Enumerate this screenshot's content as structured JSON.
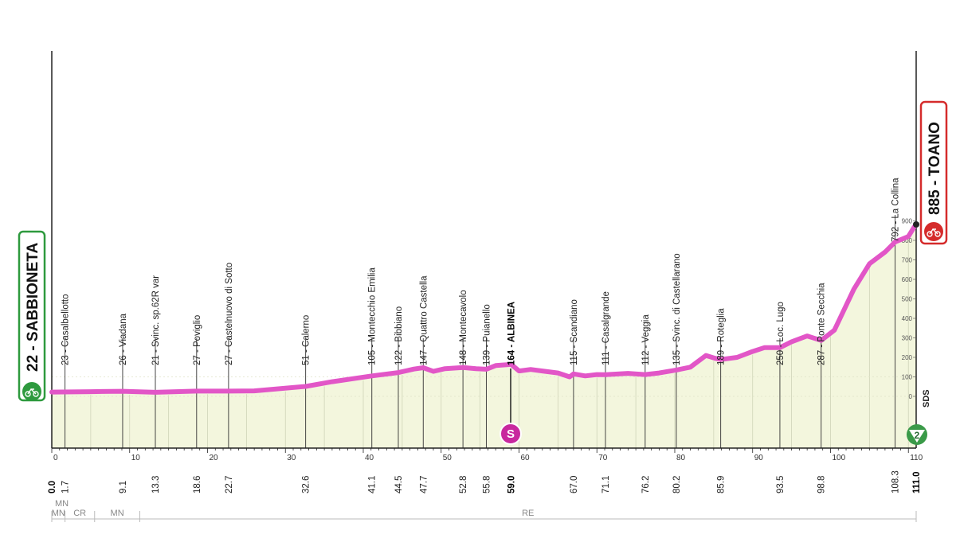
{
  "chart_data": {
    "type": "area",
    "title": "",
    "xlabel": "",
    "ylabel": "",
    "xlim": [
      0,
      111
    ],
    "ylim": [
      0,
      1000
    ],
    "x_ticks": [
      0,
      10,
      20,
      30,
      40,
      50,
      60,
      70,
      80,
      90,
      100,
      110
    ],
    "elevation_ticks": [
      0,
      100,
      200,
      300,
      400,
      500,
      600,
      700,
      800,
      900
    ],
    "start": {
      "name": "22 - SABBIONETA",
      "km": "0.0",
      "color": "#2e9a3e"
    },
    "finish": {
      "name": "885 - TOANO",
      "km": "111.0",
      "color": "#d52b2b"
    },
    "line_color": "#e256c7",
    "waypoints": [
      {
        "km": 1.7,
        "km_label": "1.7",
        "label": "23 - Casalbellotto"
      },
      {
        "km": 9.1,
        "km_label": "9.1",
        "label": "26 - Viadana"
      },
      {
        "km": 13.3,
        "km_label": "13.3",
        "label": "21 - Svinc. sp.62R var"
      },
      {
        "km": 18.6,
        "km_label": "18.6",
        "label": "27 - Poviglio"
      },
      {
        "km": 22.7,
        "km_label": "22.7",
        "label": "27 - Castelnuovo di Sotto"
      },
      {
        "km": 32.6,
        "km_label": "32.6",
        "label": "51 - Calerno"
      },
      {
        "km": 41.1,
        "km_label": "41.1",
        "label": "105 - Montecchio Emilia"
      },
      {
        "km": 44.5,
        "km_label": "44.5",
        "label": "122 - Bibbiano"
      },
      {
        "km": 47.7,
        "km_label": "47.7",
        "label": "147 - Quattro Castella"
      },
      {
        "km": 52.8,
        "km_label": "52.8",
        "label": "148 - Montecavolo"
      },
      {
        "km": 55.8,
        "km_label": "55.8",
        "label": "139 - Puianello"
      },
      {
        "km": 59.0,
        "km_label": "59.0",
        "label": "164 - ALBINEA",
        "bold": true
      },
      {
        "km": 67.0,
        "km_label": "67.0",
        "label": "115 - Scandiano"
      },
      {
        "km": 71.1,
        "km_label": "71.1",
        "label": "111 - Casalgrande"
      },
      {
        "km": 76.2,
        "km_label": "76.2",
        "label": "112 - Veggia"
      },
      {
        "km": 80.2,
        "km_label": "80.2",
        "label": "135 - Svinc. di Castellarano"
      },
      {
        "km": 85.9,
        "km_label": "85.9",
        "label": "189 - Roteglia"
      },
      {
        "km": 93.5,
        "km_label": "93.5",
        "label": "250 - Loc. Lugo"
      },
      {
        "km": 98.8,
        "km_label": "98.8",
        "label": "287 - Ponte Secchia"
      },
      {
        "km": 108.3,
        "km_label": "108.3",
        "label": "792 - La Collina"
      }
    ],
    "series": [
      {
        "x": [
          0,
          5,
          9.1,
          13.3,
          18.6,
          22.7,
          26,
          32.6,
          36,
          41.1,
          44.5,
          46.5,
          47.7,
          49,
          50.5,
          52.8,
          54.5,
          55.8,
          57,
          59,
          60,
          61.5,
          63,
          65,
          66.5,
          67,
          68.5,
          70,
          71.1,
          74,
          76.2,
          78,
          80.2,
          82,
          84,
          85.2,
          85.9,
          88,
          90,
          91.5,
          93.5,
          95,
          97,
          98.8,
          100.5,
          103,
          105,
          107,
          108.3,
          110,
          111
        ],
        "y": [
          22,
          24,
          26,
          21,
          27,
          27,
          28,
          51,
          75,
          105,
          122,
          140,
          147,
          128,
          142,
          148,
          142,
          139,
          158,
          164,
          130,
          138,
          130,
          120,
          100,
          115,
          105,
          112,
          111,
          118,
          112,
          120,
          135,
          150,
          210,
          195,
          189,
          200,
          230,
          250,
          250,
          280,
          310,
          287,
          340,
          550,
          680,
          740,
          792,
          820,
          885
        ]
      }
    ],
    "terrain": [
      {
        "label": "MN",
        "from": 0,
        "to": 1.7
      },
      {
        "label": "CR",
        "from": 1.7,
        "to": 5.5
      },
      {
        "label": "MN",
        "from": 5.5,
        "to": 11.3
      },
      {
        "label": "RE",
        "from": 11.3,
        "to": 111
      }
    ],
    "sprint_label": "S",
    "direction_label": "SDS",
    "number_badge": "2"
  }
}
